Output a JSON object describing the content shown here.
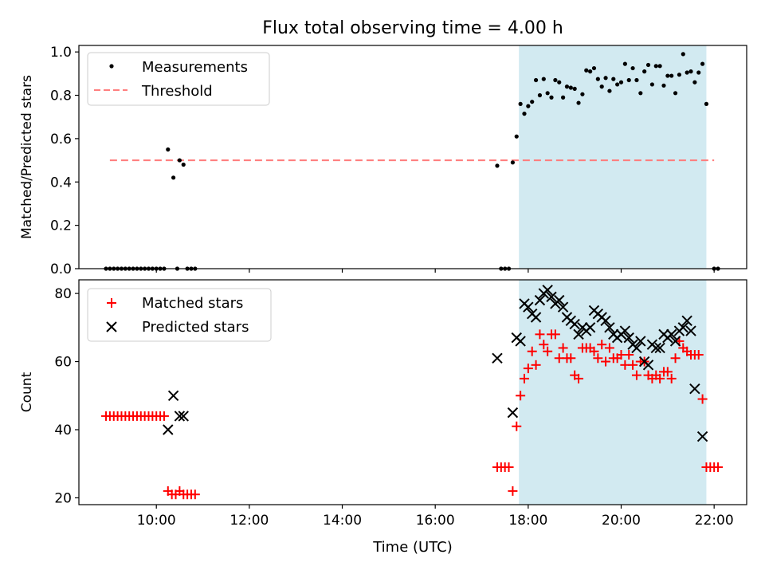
{
  "title": "Flux total observing time = 4.00 h",
  "xlabel": "Time (UTC)",
  "x_ticks": [
    "10:00",
    "12:00",
    "14:00",
    "16:00",
    "18:00",
    "20:00",
    "22:00"
  ],
  "colors": {
    "highlight": "#add8e6",
    "threshold": "#ff7f7f",
    "matched": "#ff0000",
    "predicted": "#000000",
    "measurements": "#000000"
  },
  "chart_data": [
    {
      "type": "scatter",
      "ylabel": "Matched/Predicted stars",
      "ylim": [
        0,
        1.03
      ],
      "y_ticks": [
        "0.0",
        "0.2",
        "0.4",
        "0.6",
        "0.8",
        "1.0"
      ],
      "xlim": [
        "08:20",
        "22:42"
      ],
      "highlight_span": [
        "17:48",
        "21:50"
      ],
      "legend": {
        "placement": "top-left",
        "entries": [
          "Measurements",
          "Threshold"
        ]
      },
      "threshold": {
        "name": "Threshold",
        "y": 0.5,
        "x": [
          "09:00",
          "22:00"
        ]
      },
      "series": [
        {
          "name": "Measurements",
          "marker": "dot",
          "points": [
            [
              "08:55",
              0
            ],
            [
              "09:00",
              0
            ],
            [
              "09:05",
              0
            ],
            [
              "09:10",
              0
            ],
            [
              "09:15",
              0
            ],
            [
              "09:20",
              0
            ],
            [
              "09:25",
              0
            ],
            [
              "09:30",
              0
            ],
            [
              "09:35",
              0
            ],
            [
              "09:40",
              0
            ],
            [
              "09:45",
              0
            ],
            [
              "09:50",
              0
            ],
            [
              "09:55",
              0
            ],
            [
              "10:00",
              0
            ],
            [
              "10:05",
              0
            ],
            [
              "10:10",
              0
            ],
            [
              "10:15",
              0.55
            ],
            [
              "10:22",
              0.42
            ],
            [
              "10:27",
              0
            ],
            [
              "10:30",
              0.5
            ],
            [
              "10:35",
              0.48
            ],
            [
              "10:40",
              0
            ],
            [
              "10:45",
              0
            ],
            [
              "10:50",
              0
            ],
            [
              "17:20",
              0.475
            ],
            [
              "17:25",
              0
            ],
            [
              "17:30",
              0
            ],
            [
              "17:35",
              0
            ],
            [
              "17:40",
              0.49
            ],
            [
              "17:45",
              0.61
            ],
            [
              "17:50",
              0.76
            ],
            [
              "17:55",
              0.715
            ],
            [
              "18:00",
              0.75
            ],
            [
              "18:05",
              0.77
            ],
            [
              "18:10",
              0.87
            ],
            [
              "18:15",
              0.8
            ],
            [
              "18:20",
              0.875
            ],
            [
              "18:25",
              0.81
            ],
            [
              "18:30",
              0.79
            ],
            [
              "18:35",
              0.87
            ],
            [
              "18:40",
              0.86
            ],
            [
              "18:45",
              0.79
            ],
            [
              "18:50",
              0.84
            ],
            [
              "18:55",
              0.835
            ],
            [
              "19:00",
              0.83
            ],
            [
              "19:05",
              0.765
            ],
            [
              "19:10",
              0.805
            ],
            [
              "19:15",
              0.915
            ],
            [
              "19:20",
              0.91
            ],
            [
              "19:25",
              0.925
            ],
            [
              "19:30",
              0.875
            ],
            [
              "19:35",
              0.84
            ],
            [
              "19:40",
              0.88
            ],
            [
              "19:45",
              0.82
            ],
            [
              "19:50",
              0.875
            ],
            [
              "19:55",
              0.85
            ],
            [
              "20:00",
              0.86
            ],
            [
              "20:05",
              0.945
            ],
            [
              "20:10",
              0.87
            ],
            [
              "20:15",
              0.925
            ],
            [
              "20:20",
              0.87
            ],
            [
              "20:25",
              0.81
            ],
            [
              "20:30",
              0.91
            ],
            [
              "20:35",
              0.94
            ],
            [
              "20:40",
              0.85
            ],
            [
              "20:45",
              0.935
            ],
            [
              "20:50",
              0.935
            ],
            [
              "20:55",
              0.845
            ],
            [
              "21:00",
              0.89
            ],
            [
              "21:05",
              0.89
            ],
            [
              "21:10",
              0.81
            ],
            [
              "21:15",
              0.895
            ],
            [
              "21:20",
              0.99
            ],
            [
              "21:25",
              0.905
            ],
            [
              "21:30",
              0.91
            ],
            [
              "21:35",
              0.86
            ],
            [
              "21:40",
              0.905
            ],
            [
              "21:45",
              0.945
            ],
            [
              "21:50",
              0.76
            ],
            [
              "22:00",
              0
            ],
            [
              "22:05",
              0
            ]
          ]
        }
      ]
    },
    {
      "type": "scatter",
      "ylabel": "Count",
      "ylim": [
        18,
        84
      ],
      "y_ticks": [
        "20",
        "40",
        "60",
        "80"
      ],
      "xlim": [
        "08:20",
        "22:42"
      ],
      "highlight_span": [
        "17:48",
        "21:50"
      ],
      "legend": {
        "placement": "top-left",
        "entries": [
          "Matched stars",
          "Predicted stars"
        ]
      },
      "series": [
        {
          "name": "Matched stars",
          "marker": "plus",
          "points": [
            [
              "08:55",
              44
            ],
            [
              "09:00",
              44
            ],
            [
              "09:05",
              44
            ],
            [
              "09:10",
              44
            ],
            [
              "09:15",
              44
            ],
            [
              "09:20",
              44
            ],
            [
              "09:25",
              44
            ],
            [
              "09:30",
              44
            ],
            [
              "09:35",
              44
            ],
            [
              "09:40",
              44
            ],
            [
              "09:45",
              44
            ],
            [
              "09:50",
              44
            ],
            [
              "09:55",
              44
            ],
            [
              "10:00",
              44
            ],
            [
              "10:05",
              44
            ],
            [
              "10:10",
              44
            ],
            [
              "10:15",
              22
            ],
            [
              "10:20",
              21
            ],
            [
              "10:25",
              21
            ],
            [
              "10:30",
              22
            ],
            [
              "10:35",
              21
            ],
            [
              "10:40",
              21
            ],
            [
              "10:45",
              21
            ],
            [
              "10:50",
              21
            ],
            [
              "17:20",
              29
            ],
            [
              "17:25",
              29
            ],
            [
              "17:30",
              29
            ],
            [
              "17:35",
              29
            ],
            [
              "17:40",
              22
            ],
            [
              "17:45",
              41
            ],
            [
              "17:50",
              50
            ],
            [
              "17:55",
              55
            ],
            [
              "18:00",
              58
            ],
            [
              "18:05",
              63
            ],
            [
              "18:10",
              59
            ],
            [
              "18:15",
              68
            ],
            [
              "18:20",
              65
            ],
            [
              "18:25",
              63
            ],
            [
              "18:30",
              68
            ],
            [
              "18:35",
              68
            ],
            [
              "18:40",
              61
            ],
            [
              "18:45",
              64
            ],
            [
              "18:50",
              61
            ],
            [
              "18:55",
              61
            ],
            [
              "19:00",
              56
            ],
            [
              "19:05",
              55
            ],
            [
              "19:10",
              64
            ],
            [
              "19:15",
              64
            ],
            [
              "19:20",
              64
            ],
            [
              "19:25",
              63
            ],
            [
              "19:30",
              61
            ],
            [
              "19:35",
              65
            ],
            [
              "19:40",
              60
            ],
            [
              "19:45",
              64
            ],
            [
              "19:50",
              61
            ],
            [
              "19:55",
              61
            ],
            [
              "20:00",
              62
            ],
            [
              "20:05",
              59
            ],
            [
              "20:10",
              62
            ],
            [
              "20:15",
              59
            ],
            [
              "20:20",
              56
            ],
            [
              "20:25",
              60
            ],
            [
              "20:30",
              60
            ],
            [
              "20:35",
              56
            ],
            [
              "20:40",
              55
            ],
            [
              "20:45",
              56
            ],
            [
              "20:50",
              55
            ],
            [
              "20:55",
              57
            ],
            [
              "21:00",
              57
            ],
            [
              "21:05",
              55
            ],
            [
              "21:10",
              61
            ],
            [
              "21:15",
              66
            ],
            [
              "21:20",
              64
            ],
            [
              "21:25",
              63
            ],
            [
              "21:30",
              62
            ],
            [
              "21:35",
              62
            ],
            [
              "21:40",
              62
            ],
            [
              "21:45",
              49
            ],
            [
              "21:50",
              29
            ],
            [
              "21:55",
              29
            ],
            [
              "22:00",
              29
            ],
            [
              "22:05",
              29
            ]
          ]
        },
        {
          "name": "Predicted stars",
          "marker": "x",
          "points": [
            [
              "10:15",
              40
            ],
            [
              "10:22",
              50
            ],
            [
              "10:30",
              44
            ],
            [
              "10:35",
              44
            ],
            [
              "17:20",
              61
            ],
            [
              "17:40",
              45
            ],
            [
              "17:45",
              67
            ],
            [
              "17:50",
              66
            ],
            [
              "17:55",
              77
            ],
            [
              "18:00",
              76
            ],
            [
              "18:05",
              74
            ],
            [
              "18:10",
              73
            ],
            [
              "18:15",
              78
            ],
            [
              "18:20",
              80
            ],
            [
              "18:25",
              81
            ],
            [
              "18:30",
              79
            ],
            [
              "18:35",
              77
            ],
            [
              "18:40",
              78
            ],
            [
              "18:45",
              76
            ],
            [
              "18:50",
              73
            ],
            [
              "18:55",
              72
            ],
            [
              "19:00",
              71
            ],
            [
              "19:05",
              68
            ],
            [
              "19:10",
              70
            ],
            [
              "19:15",
              69
            ],
            [
              "19:20",
              70
            ],
            [
              "19:25",
              75
            ],
            [
              "19:30",
              74
            ],
            [
              "19:35",
              73
            ],
            [
              "19:40",
              72
            ],
            [
              "19:45",
              70
            ],
            [
              "19:50",
              68
            ],
            [
              "19:55",
              67
            ],
            [
              "20:00",
              68
            ],
            [
              "20:05",
              69
            ],
            [
              "20:10",
              67
            ],
            [
              "20:15",
              65
            ],
            [
              "20:20",
              64
            ],
            [
              "20:25",
              66
            ],
            [
              "20:30",
              60
            ],
            [
              "20:35",
              59
            ],
            [
              "20:40",
              65
            ],
            [
              "20:45",
              64
            ],
            [
              "20:50",
              64
            ],
            [
              "20:55",
              68
            ],
            [
              "21:00",
              67
            ],
            [
              "21:05",
              68
            ],
            [
              "21:10",
              66
            ],
            [
              "21:15",
              69
            ],
            [
              "21:20",
              70
            ],
            [
              "21:25",
              72
            ],
            [
              "21:30",
              69
            ],
            [
              "21:35",
              52
            ],
            [
              "21:45",
              38
            ]
          ]
        }
      ]
    }
  ]
}
